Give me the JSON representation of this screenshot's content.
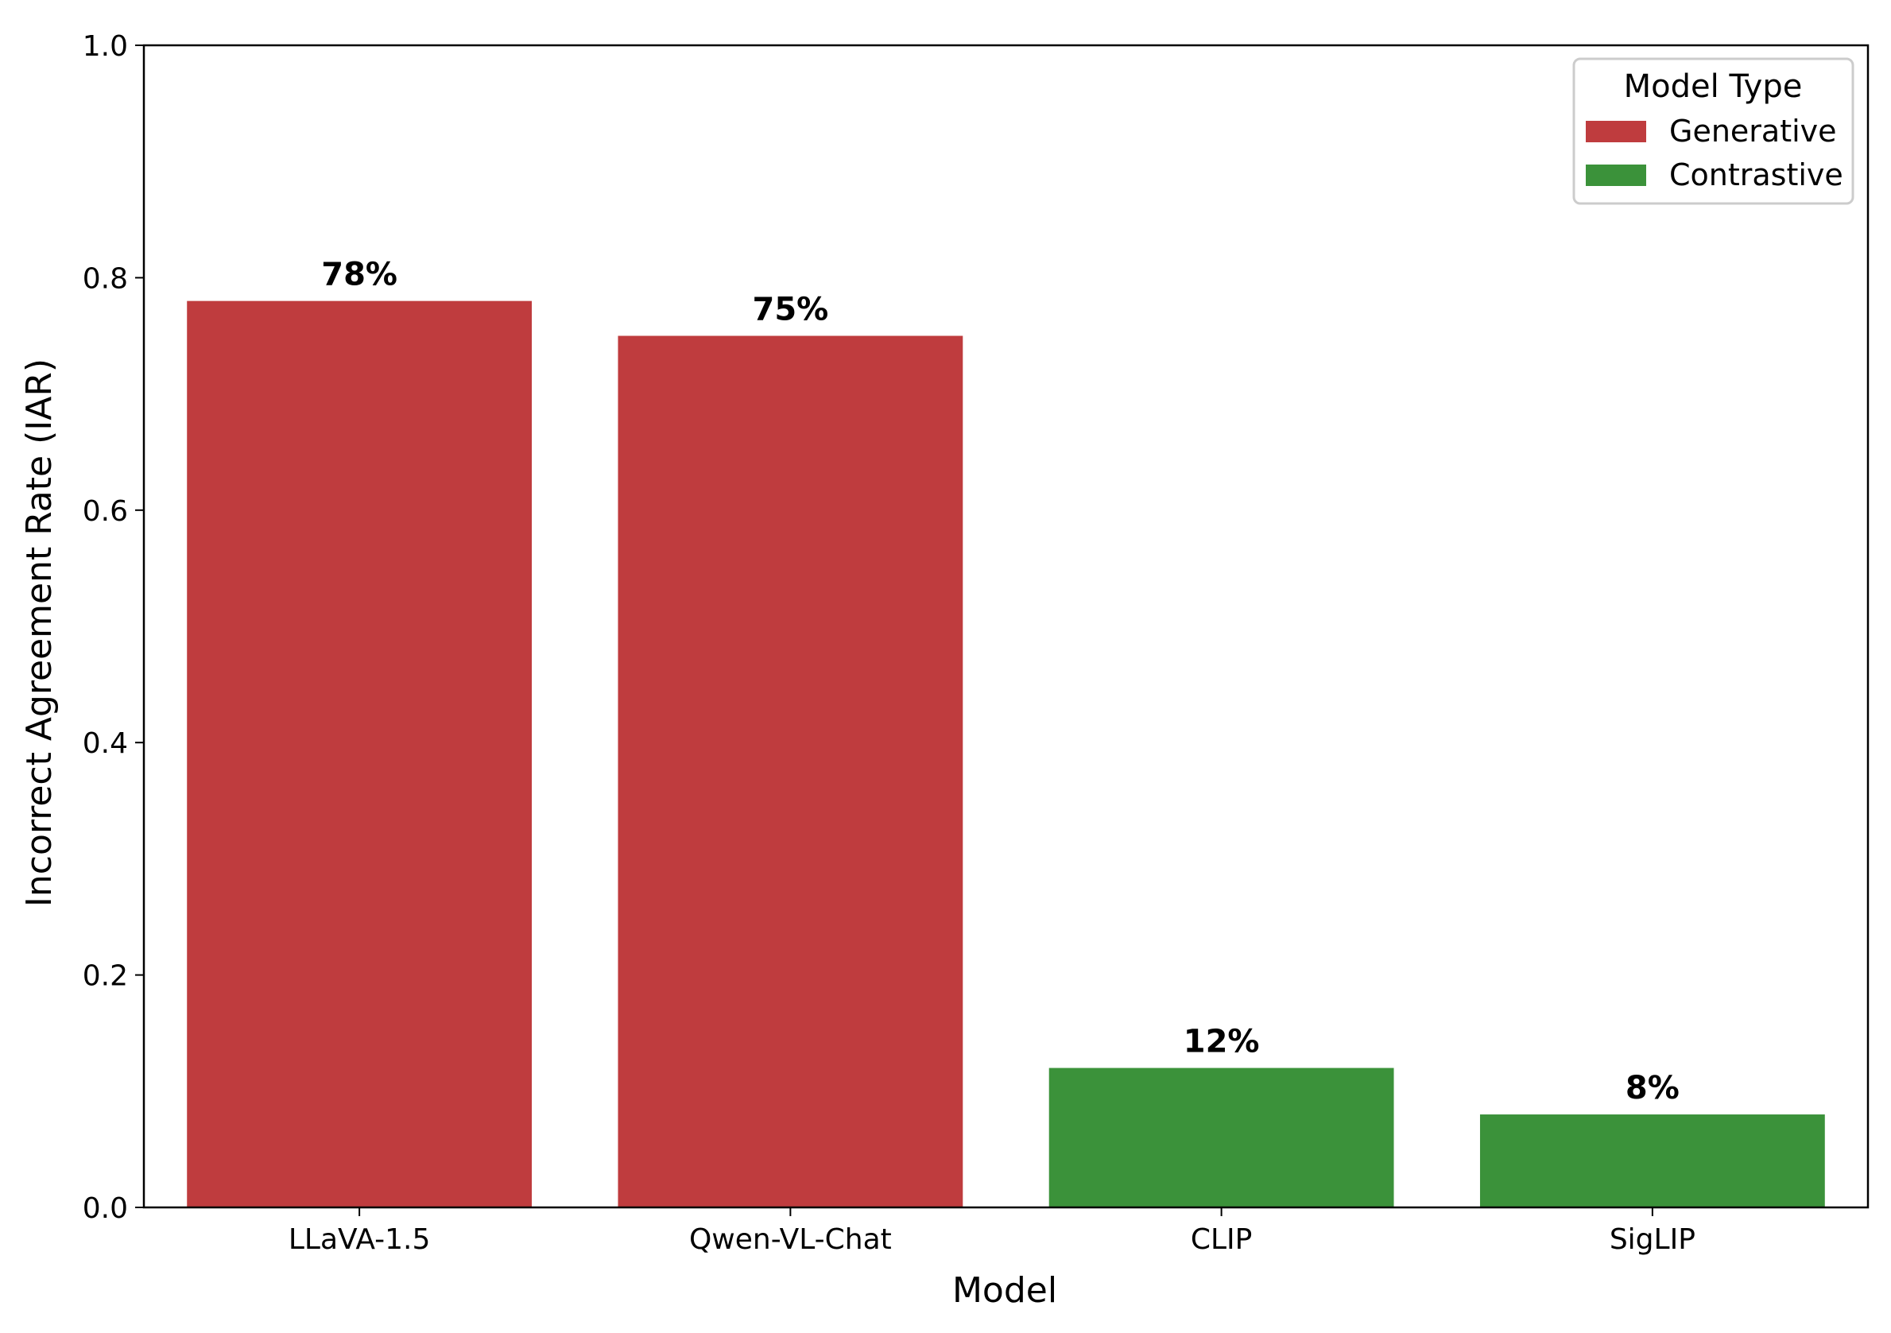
{
  "chart_data": {
    "type": "bar",
    "title": "",
    "xlabel": "Model",
    "ylabel": "Incorrect Agreement Rate (IAR)",
    "ylim": [
      0,
      1.0
    ],
    "yticks": [
      0.0,
      0.2,
      0.4,
      0.6,
      0.8,
      1.0
    ],
    "ytick_labels": [
      "0.0",
      "0.2",
      "0.4",
      "0.6",
      "0.8",
      "1.0"
    ],
    "categories": [
      "LLaVA-1.5",
      "Qwen-VL-Chat",
      "CLIP",
      "SigLIP"
    ],
    "values": [
      0.78,
      0.75,
      0.12,
      0.08
    ],
    "data_labels": [
      "78%",
      "75%",
      "12%",
      "8%"
    ],
    "groups": [
      "Generative",
      "Generative",
      "Contrastive",
      "Contrastive"
    ],
    "grid": false,
    "legend": {
      "title": "Model Type",
      "placement": "top-right",
      "entries": [
        {
          "label": "Generative",
          "color": "#bf3c3e"
        },
        {
          "label": "Contrastive",
          "color": "#3b923a"
        }
      ]
    }
  }
}
